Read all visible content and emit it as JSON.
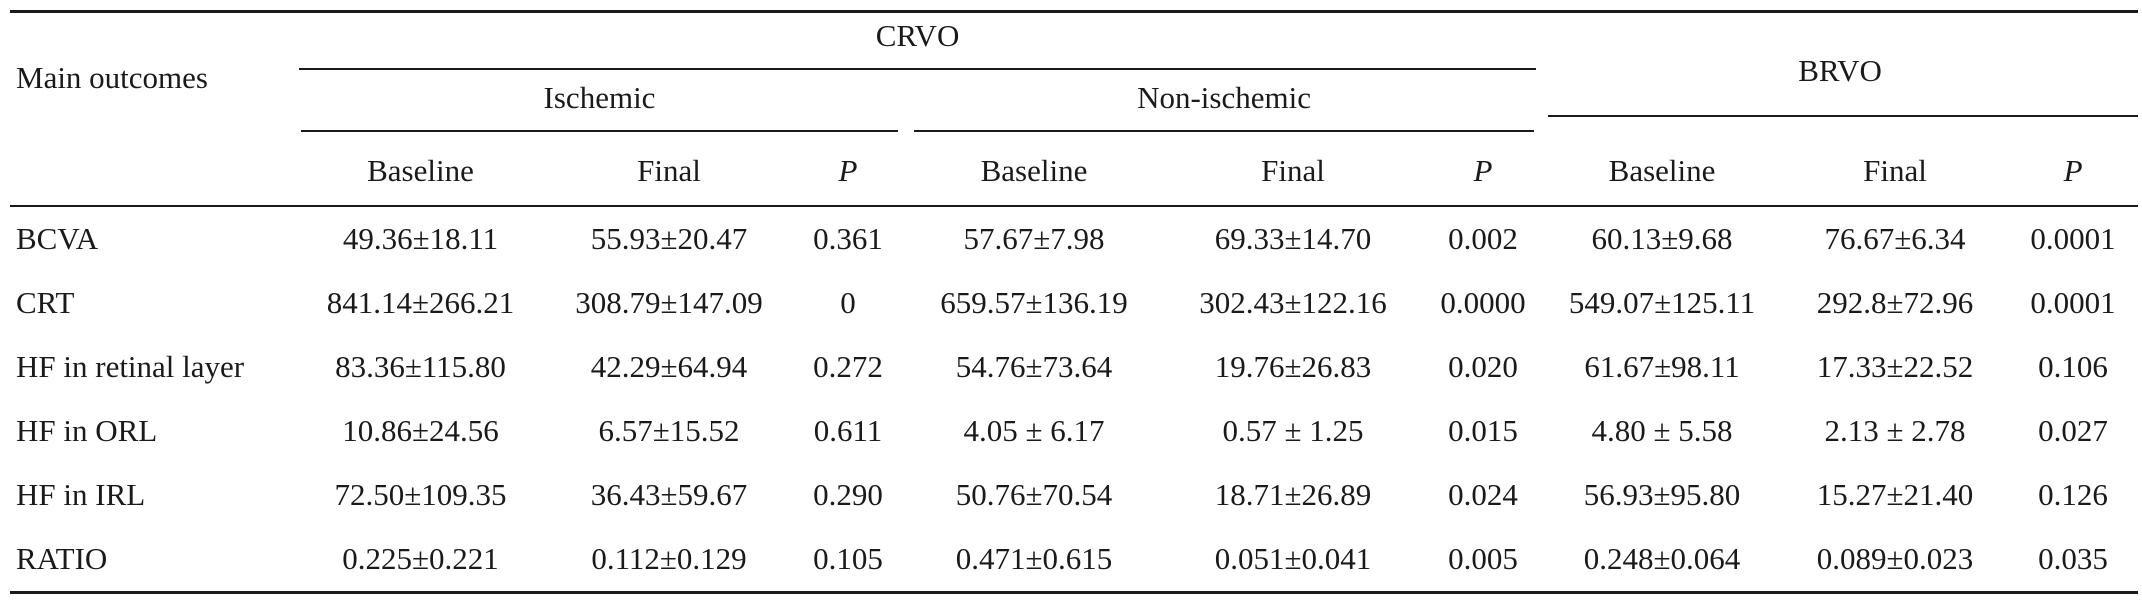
{
  "table": {
    "row_header_label": "Main outcomes",
    "groups": [
      {
        "label": "CRVO",
        "subgroups": [
          "Ischemic",
          "Non-ischemic"
        ]
      },
      {
        "label": "BRVO",
        "subgroups": []
      }
    ],
    "columns": [
      "Baseline",
      "Final",
      "P",
      "Baseline",
      "Final",
      "P",
      "Baseline",
      "Final",
      "P"
    ],
    "rows": [
      {
        "label": "BCVA",
        "cells": [
          "49.36±18.11",
          "55.93±20.47",
          "0.361",
          "57.67±7.98",
          "69.33±14.70",
          "0.002",
          "60.13±9.68",
          "76.67±6.34",
          "0.0001"
        ]
      },
      {
        "label": "CRT",
        "cells": [
          "841.14±266.21",
          "308.79±147.09",
          "0",
          "659.57±136.19",
          "302.43±122.16",
          "0.0000",
          "549.07±125.11",
          "292.8±72.96",
          "0.0001"
        ]
      },
      {
        "label": "HF in retinal layer",
        "cells": [
          "83.36±115.80",
          "42.29±64.94",
          "0.272",
          "54.76±73.64",
          "19.76±26.83",
          "0.020",
          "61.67±98.11",
          "17.33±22.52",
          "0.106"
        ]
      },
      {
        "label": "HF in ORL",
        "cells": [
          "10.86±24.56",
          "6.57±15.52",
          "0.611",
          "4.05 ± 6.17",
          "0.57 ± 1.25",
          "0.015",
          "4.80 ± 5.58",
          "2.13 ± 2.78",
          "0.027"
        ]
      },
      {
        "label": "HF in IRL",
        "cells": [
          "72.50±109.35",
          "36.43±59.67",
          "0.290",
          "50.76±70.54",
          "18.71±26.89",
          "0.024",
          "56.93±95.80",
          "15.27±21.40",
          "0.126"
        ]
      },
      {
        "label": "RATIO",
        "cells": [
          "0.225±0.221",
          "0.112±0.129",
          "0.105",
          "0.471±0.615",
          "0.051±0.041",
          "0.005",
          "0.248±0.064",
          "0.089±0.023",
          "0.035"
        ]
      }
    ]
  }
}
